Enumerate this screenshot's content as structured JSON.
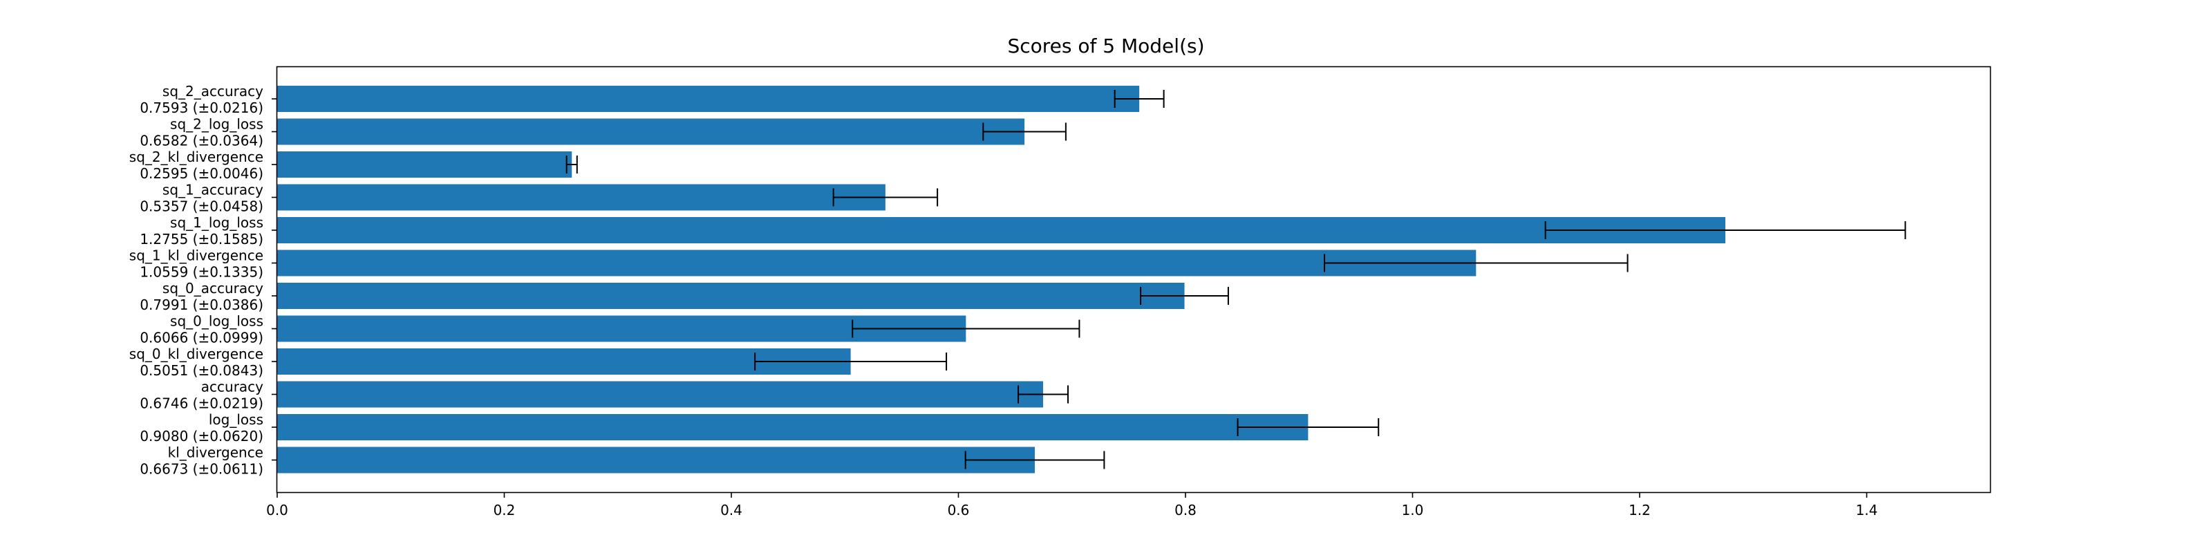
{
  "chart_data": {
    "type": "bar",
    "orientation": "horizontal",
    "title": "Scores of 5 Model(s)",
    "xlabel": "",
    "ylabel": "",
    "xlim": [
      0,
      1.5093
    ],
    "x_ticks": [
      "0.0",
      "0.2",
      "0.4",
      "0.6",
      "0.8",
      "1.0",
      "1.2",
      "1.4"
    ],
    "grid": false,
    "bar_color": "#1f77b4",
    "error_bar_color": "#000000",
    "categories": [
      {
        "name": "sq_2_accuracy",
        "value_label": "0.7593 (±0.0216)",
        "value": 0.7593,
        "error": 0.0216
      },
      {
        "name": "sq_2_log_loss",
        "value_label": "0.6582 (±0.0364)",
        "value": 0.6582,
        "error": 0.0364
      },
      {
        "name": "sq_2_kl_divergence",
        "value_label": "0.2595 (±0.0046)",
        "value": 0.2595,
        "error": 0.0046
      },
      {
        "name": "sq_1_accuracy",
        "value_label": "0.5357 (±0.0458)",
        "value": 0.5357,
        "error": 0.0458
      },
      {
        "name": "sq_1_log_loss",
        "value_label": "1.2755 (±0.1585)",
        "value": 1.2755,
        "error": 0.1585
      },
      {
        "name": "sq_1_kl_divergence",
        "value_label": "1.0559 (±0.1335)",
        "value": 1.0559,
        "error": 0.1335
      },
      {
        "name": "sq_0_accuracy",
        "value_label": "0.7991 (±0.0386)",
        "value": 0.7991,
        "error": 0.0386
      },
      {
        "name": "sq_0_log_loss",
        "value_label": "0.6066 (±0.0999)",
        "value": 0.6066,
        "error": 0.0999
      },
      {
        "name": "sq_0_kl_divergence",
        "value_label": "0.5051 (±0.0843)",
        "value": 0.5051,
        "error": 0.0843
      },
      {
        "name": "accuracy",
        "value_label": "0.6746 (±0.0219)",
        "value": 0.6746,
        "error": 0.0219
      },
      {
        "name": "log_loss",
        "value_label": "0.9080 (±0.0620)",
        "value": 0.908,
        "error": 0.062
      },
      {
        "name": "kl_divergence",
        "value_label": "0.6673 (±0.0611)",
        "value": 0.6673,
        "error": 0.0611
      }
    ]
  }
}
